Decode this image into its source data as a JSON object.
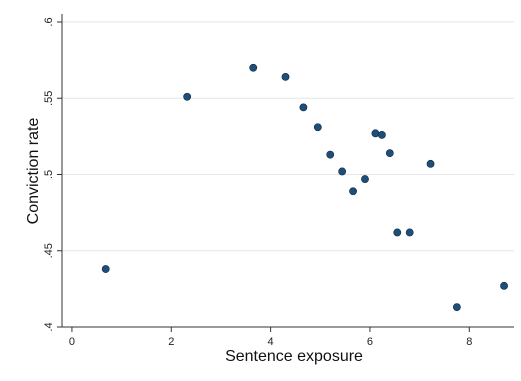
{
  "chart_data": {
    "type": "scatter",
    "title": "",
    "xlabel": "Sentence exposure",
    "ylabel": "Conviction rate",
    "xlim": [
      -0.2,
      8.9
    ],
    "ylim": [
      0.4,
      0.6
    ],
    "x_ticks": [
      0,
      2,
      4,
      6,
      8
    ],
    "x_tick_labels": [
      "0",
      "2",
      "4",
      "6",
      "8"
    ],
    "y_ticks": [
      0.4,
      0.45,
      0.5,
      0.55,
      0.6
    ],
    "y_tick_labels": [
      ".4",
      ".45",
      ".5",
      ".55",
      ".6"
    ],
    "grid": "horizontal",
    "marker_color": "#1f4e79",
    "series": [
      {
        "points": [
          {
            "x": 0.68,
            "y": 0.438
          },
          {
            "x": 2.32,
            "y": 0.551
          },
          {
            "x": 3.65,
            "y": 0.57
          },
          {
            "x": 4.3,
            "y": 0.564
          },
          {
            "x": 4.66,
            "y": 0.544
          },
          {
            "x": 4.95,
            "y": 0.531
          },
          {
            "x": 5.2,
            "y": 0.513
          },
          {
            "x": 5.44,
            "y": 0.502
          },
          {
            "x": 5.66,
            "y": 0.489
          },
          {
            "x": 5.9,
            "y": 0.497
          },
          {
            "x": 6.11,
            "y": 0.527
          },
          {
            "x": 6.24,
            "y": 0.526
          },
          {
            "x": 6.4,
            "y": 0.514
          },
          {
            "x": 6.55,
            "y": 0.462
          },
          {
            "x": 6.8,
            "y": 0.462
          },
          {
            "x": 7.22,
            "y": 0.507
          },
          {
            "x": 7.75,
            "y": 0.413
          },
          {
            "x": 8.7,
            "y": 0.427
          }
        ]
      }
    ]
  }
}
